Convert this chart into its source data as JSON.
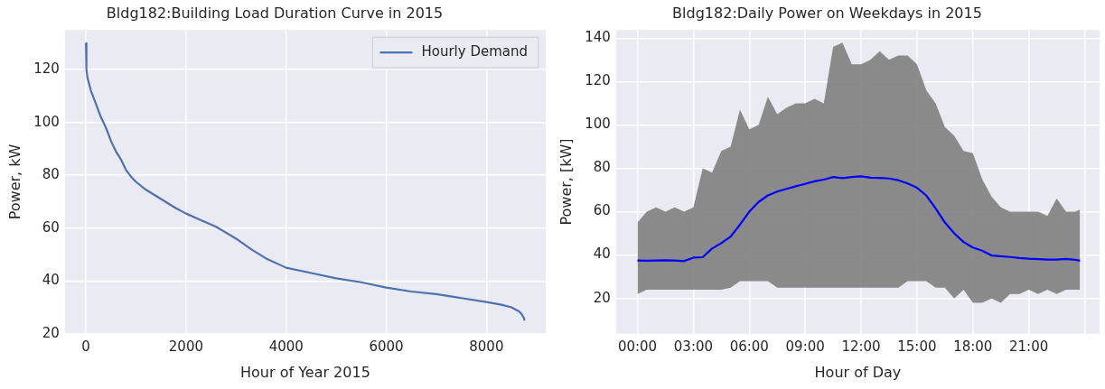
{
  "chart_data": [
    {
      "type": "line",
      "title": "Bldg182:Building Load Duration Curve in 2015",
      "xlabel": "Hour of Year 2015",
      "ylabel": "Power, kW",
      "xlim": [
        -420,
        9185
      ],
      "xticks": [
        0,
        2000,
        4000,
        6000,
        8000
      ],
      "ylim": [
        20,
        135
      ],
      "yticks": [
        20,
        40,
        60,
        80,
        100,
        120
      ],
      "grid": true,
      "legend": "top right",
      "marker": "none",
      "line_style": "solid",
      "series": [
        {
          "name": "Hourly Demand",
          "color": "#4c72b0",
          "x": [
            0,
            10,
            30,
            100,
            200,
            300,
            400,
            500,
            600,
            700,
            800,
            900,
            1000,
            1200,
            1500,
            1800,
            2000,
            2300,
            2600,
            3000,
            3300,
            3600,
            4000,
            4500,
            5000,
            5500,
            6000,
            6500,
            7000,
            7500,
            8000,
            8300,
            8500,
            8650,
            8700,
            8750,
            8759
          ],
          "values": [
            130,
            120,
            117,
            112,
            107,
            102,
            98,
            93,
            89,
            86,
            82,
            79.5,
            77.5,
            74.5,
            71,
            67.5,
            65.5,
            63,
            60.5,
            56,
            52,
            48.5,
            45,
            43,
            41,
            39.5,
            37.5,
            36,
            35,
            33.5,
            32,
            31,
            30,
            28.5,
            27.5,
            26,
            25
          ]
        }
      ]
    },
    {
      "type": "line",
      "title": "Bldg182:Daily Power on Weekdays in 2015",
      "xlabel": "Hour of Day",
      "ylabel": "Power, [kW]",
      "xlim": [
        -1.15,
        24.8
      ],
      "xticks": [
        {
          "value": 0,
          "label": "00:00"
        },
        {
          "value": 3,
          "label": "03:00"
        },
        {
          "value": 6,
          "label": "06:00"
        },
        {
          "value": 9,
          "label": "09:00"
        },
        {
          "value": 12,
          "label": "12:00"
        },
        {
          "value": 15,
          "label": "15:00"
        },
        {
          "value": 18,
          "label": "18:00"
        },
        {
          "value": 21,
          "label": "21:00"
        },
        {
          "value": 24,
          "label": null
        }
      ],
      "ylim": [
        3.7,
        143.8
      ],
      "yticks": [
        20,
        40,
        60,
        80,
        100,
        120,
        140
      ],
      "grid": true,
      "marker": "none",
      "line_style": "solid",
      "series": [
        {
          "color": "#0000ff",
          "x": [
            0,
            0.5,
            1,
            1.5,
            2,
            2.5,
            3,
            3.5,
            4,
            4.5,
            5,
            5.5,
            6,
            6.5,
            7,
            7.5,
            8,
            8.5,
            9,
            9.5,
            10,
            10.5,
            11,
            11.5,
            12,
            12.5,
            13,
            13.5,
            14,
            14.5,
            15,
            15.5,
            16,
            16.5,
            17,
            17.5,
            18,
            18.5,
            19,
            19.5,
            20,
            20.5,
            21,
            21.5,
            22,
            22.5,
            23,
            23.5,
            23.75
          ],
          "values": [
            37.5,
            37.4,
            37.5,
            37.6,
            37.5,
            37.2,
            38.8,
            39.0,
            43,
            45.5,
            48.5,
            54,
            60,
            64.5,
            67.5,
            69.3,
            70.5,
            71.7,
            72.8,
            74,
            74.8,
            76,
            75.5,
            76,
            76.3,
            75.7,
            75.6,
            75.3,
            74.5,
            73,
            71,
            67.5,
            61.5,
            55,
            50,
            46,
            43.5,
            42,
            39.8,
            39.5,
            39.1,
            38.6,
            38.3,
            38.1,
            37.9,
            37.9,
            38.2,
            37.8,
            37.4
          ],
          "upper": [
            55,
            60,
            62,
            60,
            62,
            60,
            62,
            80,
            78,
            88,
            90,
            107,
            98,
            100,
            113,
            105,
            108,
            110,
            110,
            112,
            110,
            136,
            138,
            128,
            128,
            130,
            134,
            130,
            132,
            132,
            128,
            116,
            110,
            99,
            95,
            88,
            87,
            75,
            67,
            62,
            60,
            60,
            60,
            60,
            58,
            66,
            60,
            60,
            61
          ],
          "lower": [
            22,
            24,
            24,
            24,
            24,
            24,
            24,
            24,
            24,
            24,
            25,
            28,
            28,
            28,
            28,
            25,
            25,
            25,
            25,
            25,
            25,
            25,
            25,
            25,
            25,
            25,
            25,
            25,
            25,
            28,
            28,
            28,
            25,
            25,
            20,
            24,
            18,
            18,
            20,
            18,
            22,
            22,
            24,
            22,
            24,
            22,
            24,
            24,
            24
          ]
        }
      ]
    }
  ]
}
